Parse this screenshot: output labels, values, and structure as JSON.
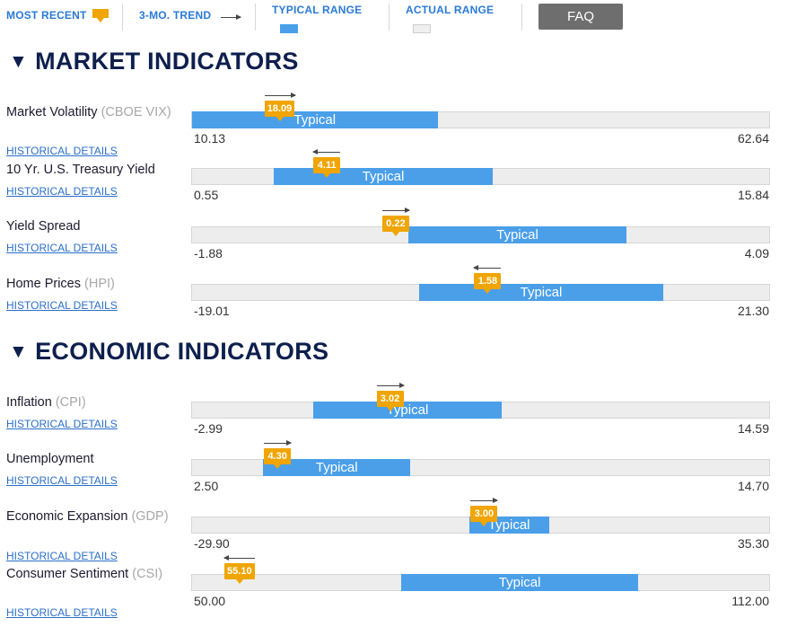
{
  "legend": {
    "most_recent": "MOST RECENT",
    "trend": "3-MO. TREND",
    "typical_range": "TYPICAL RANGE",
    "actual_range": "ACTUAL RANGE",
    "faq": "FAQ"
  },
  "colors": {
    "typical": "#4a9fe8",
    "marker": "#f0a500",
    "heading": "#0d1f4d",
    "link": "#2a6fc9"
  },
  "sections": [
    {
      "title": "MARKET INDICATORS",
      "indicators": [
        {
          "name": "Market Volatility",
          "abbr": "(CBOE VIX)",
          "link": "HISTORICAL DETAILS",
          "min": "10.13",
          "max": "62.64",
          "typical_label": "Typical",
          "typical_start": 10.13,
          "typical_end": 32.4,
          "value": "18.09",
          "trend": "up"
        },
        {
          "name": "10 Yr. U.S. Treasury Yield",
          "abbr": "",
          "link": "HISTORICAL DETAILS",
          "min": "0.55",
          "max": "15.84",
          "typical_label": "Typical",
          "typical_start": 2.7,
          "typical_end": 8.5,
          "value": "4.11",
          "trend": "down"
        },
        {
          "name": "Yield Spread",
          "abbr": "",
          "link": "HISTORICAL DETAILS",
          "min": "-1.88",
          "max": "4.09",
          "typical_label": "Typical",
          "typical_start": 0.35,
          "typical_end": 2.6,
          "value": "0.22",
          "trend": "up"
        },
        {
          "name": "Home Prices",
          "abbr": "(HPI)",
          "link": "HISTORICAL DETAILS",
          "min": "-19.01",
          "max": "21.30",
          "typical_label": "Typical",
          "typical_start": -3.2,
          "typical_end": 13.8,
          "value": "1.58",
          "trend": "down"
        }
      ]
    },
    {
      "title": "ECONOMIC INDICATORS",
      "indicators": [
        {
          "name": "Inflation",
          "abbr": "(CPI)",
          "link": "HISTORICAL DETAILS",
          "min": "-2.99",
          "max": "14.59",
          "typical_label": "Typical",
          "typical_start": 0.7,
          "typical_end": 6.4,
          "value": "3.02",
          "trend": "up"
        },
        {
          "name": "Unemployment",
          "abbr": "",
          "link": "HISTORICAL DETAILS",
          "min": "2.50",
          "max": "14.70",
          "typical_label": "Typical",
          "typical_start": 4.0,
          "typical_end": 7.1,
          "value": "4.30",
          "trend": "up"
        },
        {
          "name": "Economic Expansion",
          "abbr": "(GDP)",
          "link": "HISTORICAL DETAILS",
          "min": "-29.90",
          "max": "35.30",
          "typical_label": "Typical",
          "typical_start": 1.3,
          "typical_end": 10.3,
          "value": "3.00",
          "trend": "up"
        },
        {
          "name": "Consumer Sentiment",
          "abbr": "(CSI)",
          "link": "HISTORICAL DETAILS",
          "min": "50.00",
          "max": "112.00",
          "typical_label": "Typical",
          "typical_start": 72.4,
          "typical_end": 97.8,
          "value": "55.10",
          "trend": "down"
        }
      ]
    }
  ]
}
